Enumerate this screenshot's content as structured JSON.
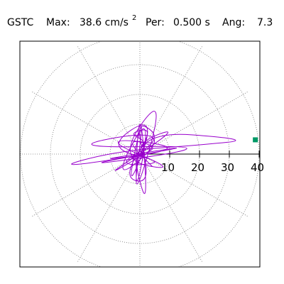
{
  "header": {
    "station": "GSTC",
    "max_label": "Max:",
    "max_value": "38.6 cm/s",
    "max_unit_exp": "2",
    "per_label": "Per:",
    "per_value": "0.500 s",
    "ang_label": "Ang:",
    "ang_value": "7.3"
  },
  "chart_data": {
    "type": "polar-hodogram",
    "title": "",
    "radial_range": [
      0,
      40
    ],
    "radial_ticks": [
      10,
      20,
      30,
      40
    ],
    "angular_gridlines_deg": [
      0,
      30,
      60,
      90,
      120,
      150,
      180,
      210,
      240,
      270,
      300,
      330
    ],
    "grid": true,
    "series": [
      {
        "color": "#9900cc",
        "points": [
          [
            0,
            0
          ],
          [
            3,
            4
          ],
          [
            -4,
            7
          ],
          [
            5,
            9
          ],
          [
            -6,
            -8
          ],
          [
            4,
            -10
          ],
          [
            -2,
            12
          ],
          [
            8,
            5
          ],
          [
            -9,
            -4
          ],
          [
            10,
            -3
          ],
          [
            -12,
            2
          ],
          [
            6,
            14
          ],
          [
            -5,
            -15
          ],
          [
            2,
            18
          ],
          [
            -3,
            -20
          ],
          [
            9,
            22
          ],
          [
            -8,
            -2
          ],
          [
            14,
            -6
          ],
          [
            -15,
            6
          ],
          [
            18,
            2
          ],
          [
            -20,
            -3
          ],
          [
            24,
            4
          ],
          [
            -26,
            -5
          ],
          [
            30,
            3
          ],
          [
            -28,
            2
          ],
          [
            12,
            9
          ],
          [
            -10,
            -11
          ],
          [
            4,
            16
          ],
          [
            -2,
            -18
          ],
          [
            0,
            20
          ],
          [
            3,
            -22
          ],
          [
            -4,
            8
          ],
          [
            38.6,
            4.9
          ],
          [
            20,
            3
          ],
          [
            -8,
            1
          ],
          [
            -30,
            -5
          ],
          [
            10,
            1
          ],
          [
            -6,
            6
          ],
          [
            7,
            -7
          ],
          [
            -3,
            3
          ],
          [
            15,
            10
          ],
          [
            -14,
            -9
          ],
          [
            5,
            2
          ],
          [
            -5,
            -2
          ],
          [
            2,
            0
          ]
        ]
      }
    ],
    "max_point": {
      "x": 38.6,
      "y": 4.9,
      "color": "#009966"
    }
  }
}
